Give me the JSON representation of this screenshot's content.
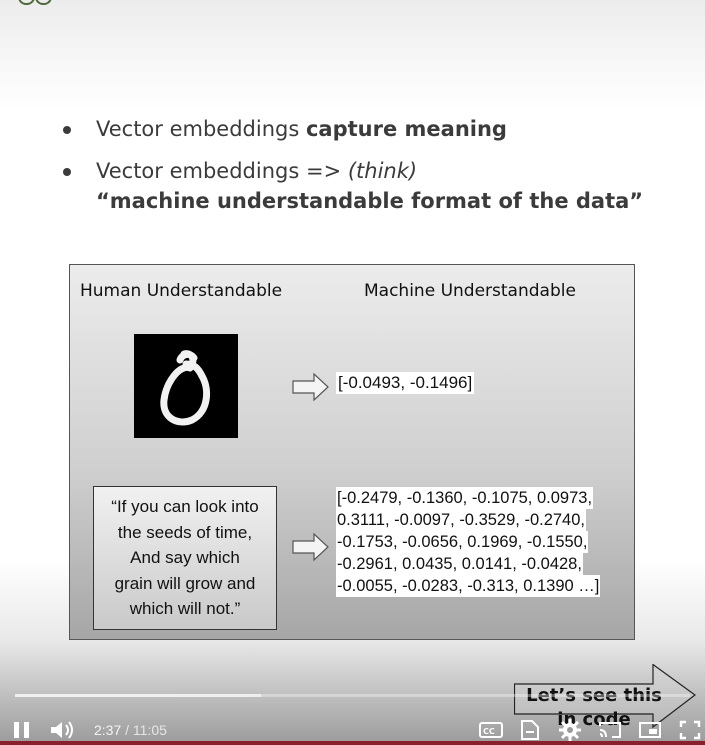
{
  "slide": {
    "bullets": [
      {
        "text": "Vector embeddings ",
        "strong": "capture meaning"
      },
      {
        "text": "Vector embeddings => ",
        "em": "(think)",
        "line2": "“machine understandable format of the data”"
      }
    ]
  },
  "diagram": {
    "human_heading": "Human Understandable",
    "machine_heading": "Machine Understandable",
    "image_vector": "[-0.0493, -0.1496]",
    "quote_lines": [
      "“If you can look into",
      "the seeds of time,",
      "And say which",
      "grain will grow and",
      "which will not.”"
    ],
    "text_vector_lines": [
      "[-0.2479,  -0.1360,  -0.1075,  0.0973,",
      "0.3111,  -0.0097,  -0.3529,  -0.2740,",
      "-0.1753,  -0.0656,   0.1969,  -0.1550,",
      "-0.2961,  0.0435,   0.0141,  -0.0428,",
      "-0.0055, -0.0283, -0.313,  0.1390 …]"
    ]
  },
  "endscreen": {
    "next_label": "Let’s see this in code"
  },
  "player": {
    "current_time": "2:37",
    "separator": " / ",
    "duration": "11:05",
    "progress_fraction": 0.236,
    "buffered_fraction": 0.365,
    "controls": [
      "pause-icon",
      "volume-icon",
      "captions-icon",
      "transcript-icon",
      "settings-icon",
      "cast-icon",
      "miniplayer-icon",
      "fullscreen-icon"
    ]
  }
}
